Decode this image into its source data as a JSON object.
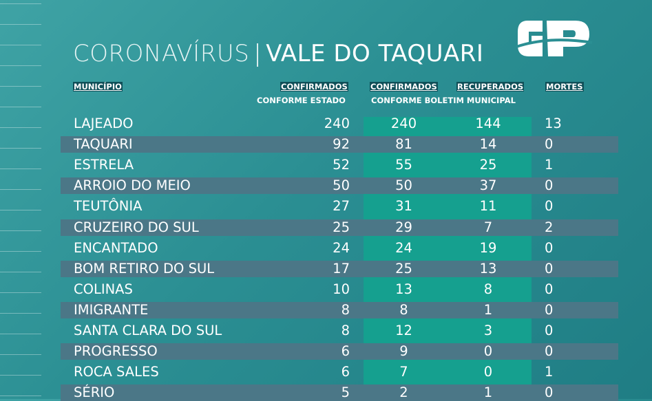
{
  "title": {
    "part1": "CORONAVÍRUS",
    "separator": "|",
    "part2": "VALE DO TAQUARI"
  },
  "logo": {
    "text": "GP"
  },
  "headers": {
    "municipio": "MUNICÍPIO",
    "confirmados_estado_top": "CONFIRMADOS",
    "confirmados_estado_sub": "CONFORME ESTADO",
    "confirmados_boletim_top": "CONFIRMADOS",
    "recuperados_top": "RECUPERADOS",
    "boletim_sub": "CONFORME BOLETIM MUNICIPAL",
    "mortes": "MORTES"
  },
  "rows": [
    {
      "municipio": "LAJEADO",
      "conf_estado": "240",
      "conf_boletim": "240",
      "recuperados": "144",
      "mortes": "13"
    },
    {
      "municipio": "TAQUARI",
      "conf_estado": "92",
      "conf_boletim": "81",
      "recuperados": "14",
      "mortes": "0"
    },
    {
      "municipio": "ESTRELA",
      "conf_estado": "52",
      "conf_boletim": "55",
      "recuperados": "25",
      "mortes": "1"
    },
    {
      "municipio": "ARROIO DO MEIO",
      "conf_estado": "50",
      "conf_boletim": "50",
      "recuperados": "37",
      "mortes": "0"
    },
    {
      "municipio": "TEUTÔNIA",
      "conf_estado": "27",
      "conf_boletim": "31",
      "recuperados": "11",
      "mortes": "0"
    },
    {
      "municipio": "CRUZEIRO DO SUL",
      "conf_estado": "25",
      "conf_boletim": "29",
      "recuperados": "7",
      "mortes": "2"
    },
    {
      "municipio": "ENCANTADO",
      "conf_estado": "24",
      "conf_boletim": "24",
      "recuperados": "19",
      "mortes": "0"
    },
    {
      "municipio": "BOM RETIRO DO SUL",
      "conf_estado": "17",
      "conf_boletim": "25",
      "recuperados": "13",
      "mortes": "0"
    },
    {
      "municipio": "COLINAS",
      "conf_estado": "10",
      "conf_boletim": "13",
      "recuperados": "8",
      "mortes": "0"
    },
    {
      "municipio": "IMIGRANTE",
      "conf_estado": "8",
      "conf_boletim": "8",
      "recuperados": "1",
      "mortes": "0"
    },
    {
      "municipio": "SANTA CLARA DO SUL",
      "conf_estado": "8",
      "conf_boletim": "12",
      "recuperados": "3",
      "mortes": "0"
    },
    {
      "municipio": "PROGRESSO",
      "conf_estado": "6",
      "conf_boletim": "9",
      "recuperados": "0",
      "mortes": "0"
    },
    {
      "municipio": "ROCA SALES",
      "conf_estado": "6",
      "conf_boletim": "7",
      "recuperados": "0",
      "mortes": "1"
    },
    {
      "municipio": "SÉRIO",
      "conf_estado": "5",
      "conf_boletim": "2",
      "recuperados": "1",
      "mortes": "0"
    }
  ],
  "colors": {
    "highlight_column": "#15a08f",
    "band": "#4b7787",
    "header_box": "#0f4f58"
  }
}
